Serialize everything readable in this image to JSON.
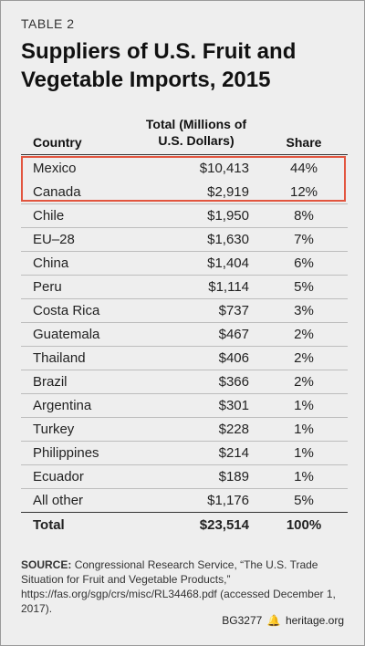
{
  "table_label": "TABLE 2",
  "title": "Suppliers of U.S. Fruit and Vegetable Imports, 2015",
  "columns": {
    "country": "Country",
    "total": "Total (Millions of U.S. Dollars)",
    "share": "Share"
  },
  "highlight_color": "#e2553f",
  "chart_data": {
    "type": "table",
    "title": "Suppliers of U.S. Fruit and Vegetable Imports, 2015",
    "columns": [
      "Country",
      "Total (Millions of U.S. Dollars)",
      "Share"
    ],
    "rows": [
      {
        "country": "Mexico",
        "total": "$10,413",
        "share": "44%"
      },
      {
        "country": "Canada",
        "total": "$2,919",
        "share": "12%"
      },
      {
        "country": "Chile",
        "total": "$1,950",
        "share": "8%"
      },
      {
        "country": "EU–28",
        "total": "$1,630",
        "share": "7%"
      },
      {
        "country": "China",
        "total": "$1,404",
        "share": "6%"
      },
      {
        "country": "Peru",
        "total": "$1,114",
        "share": "5%"
      },
      {
        "country": "Costa Rica",
        "total": "$737",
        "share": "3%"
      },
      {
        "country": "Guatemala",
        "total": "$467",
        "share": "2%"
      },
      {
        "country": "Thailand",
        "total": "$406",
        "share": "2%"
      },
      {
        "country": "Brazil",
        "total": "$366",
        "share": "2%"
      },
      {
        "country": "Argentina",
        "total": "$301",
        "share": "1%"
      },
      {
        "country": "Turkey",
        "total": "$228",
        "share": "1%"
      },
      {
        "country": "Philippines",
        "total": "$214",
        "share": "1%"
      },
      {
        "country": "Ecuador",
        "total": "$189",
        "share": "1%"
      },
      {
        "country": "All other",
        "total": "$1,176",
        "share": "5%"
      }
    ],
    "total": {
      "country": "Total",
      "total": "$23,514",
      "share": "100%"
    }
  },
  "source": {
    "label": "SOURCE:",
    "text": "Congressional Research Service, “The U.S. Trade Situation for Fruit and Vegetable Products,” https://fas.org/sgp/crs/misc/RL34468.pdf (accessed December 1, 2017)."
  },
  "footer": {
    "code": "BG3277",
    "site": "heritage.org"
  }
}
